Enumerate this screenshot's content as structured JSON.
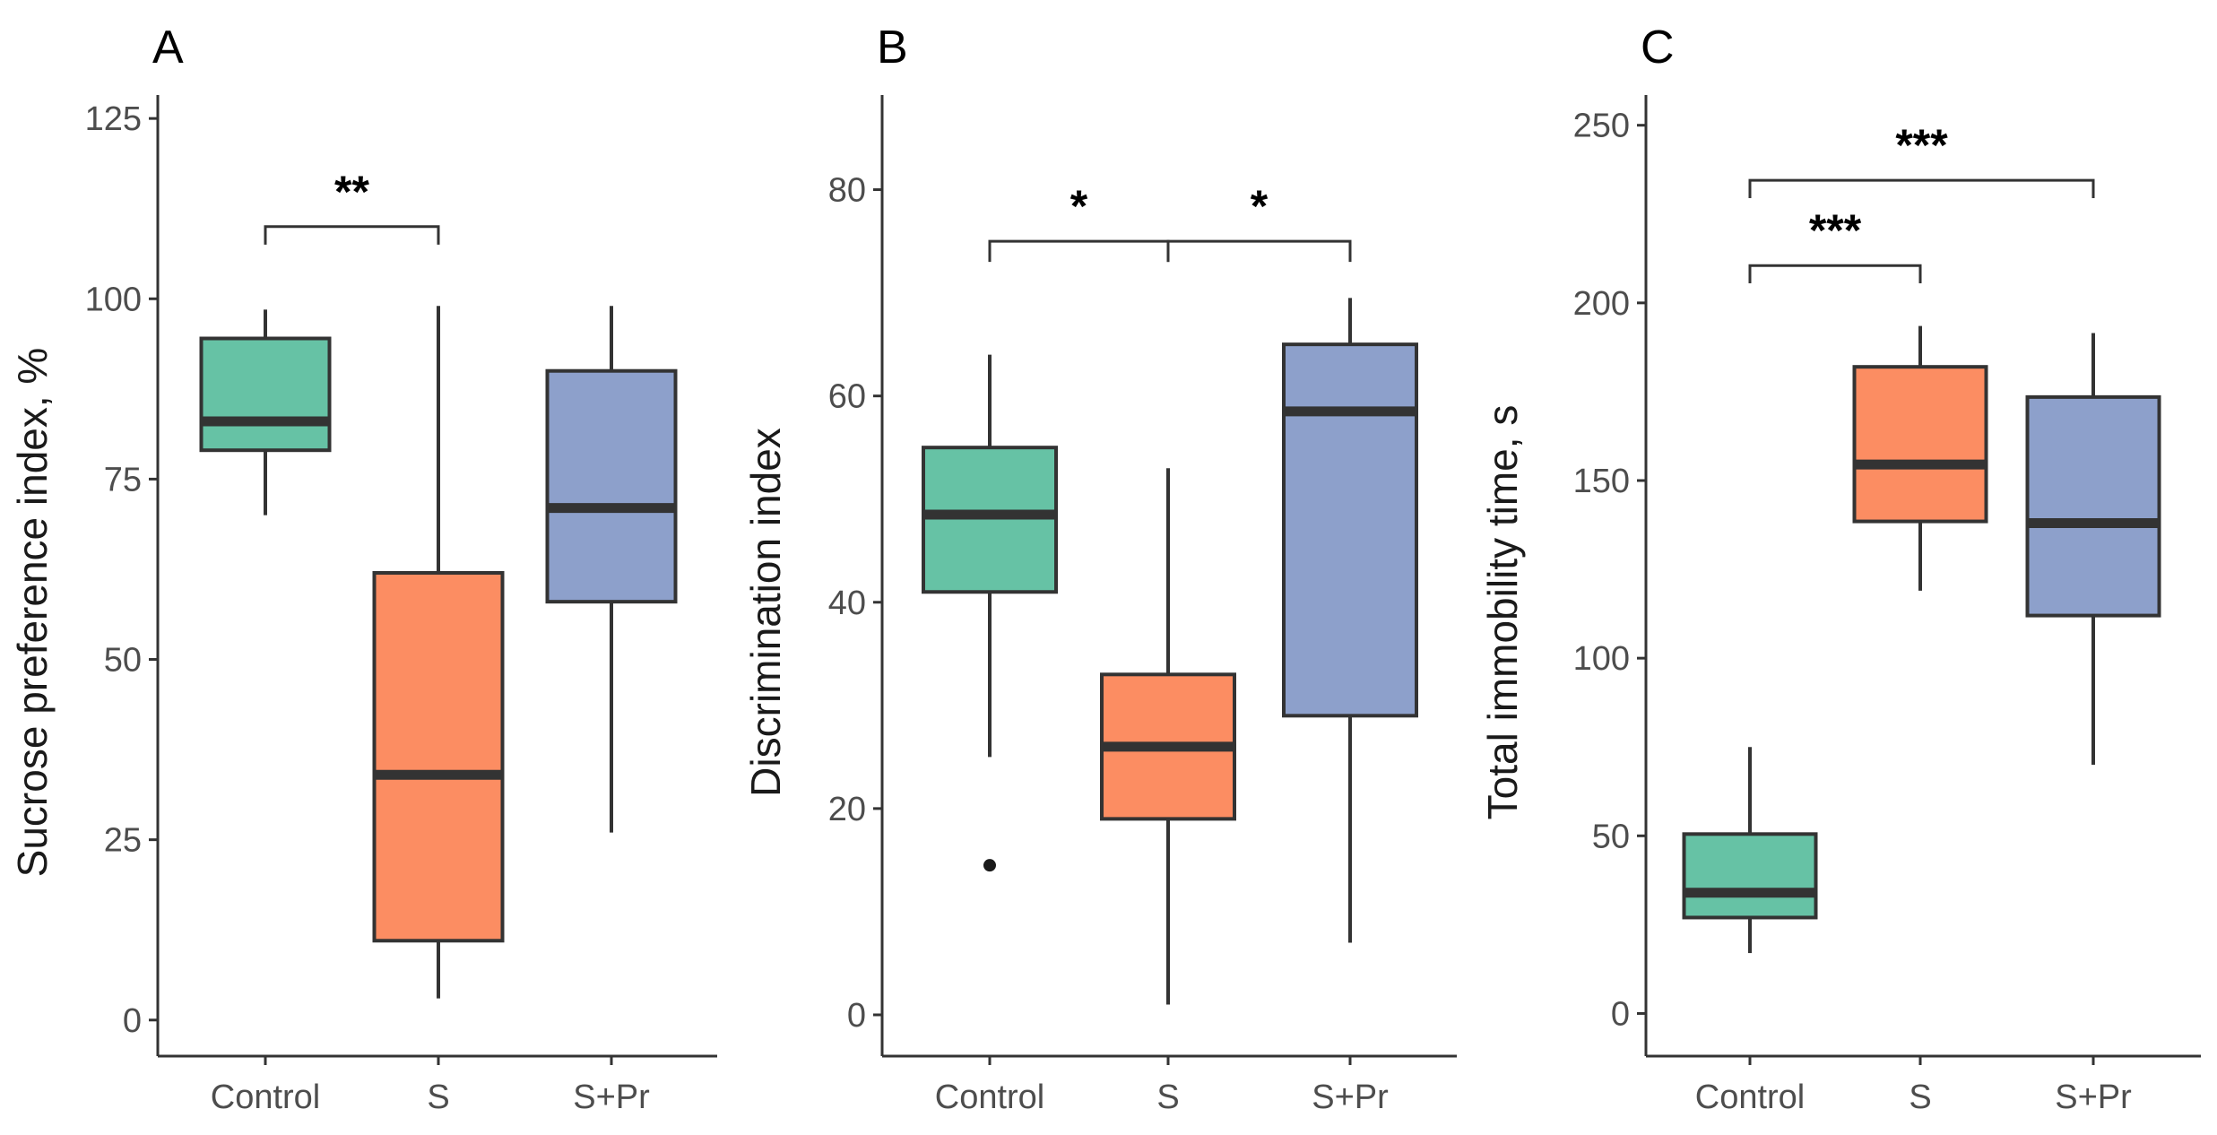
{
  "colors": {
    "Control": "#66c2a5",
    "S": "#fc8d62",
    "S+Pr": "#8da0cb",
    "outline": "#333333",
    "axis": "#333333",
    "tick_text": "#4d4d4d"
  },
  "chart_data": [
    {
      "type": "boxplot",
      "panel": "A",
      "title": "",
      "xlabel": "",
      "ylabel": "Sucrose preference index, %",
      "ylim": [
        -5,
        128
      ],
      "yticks": [
        0,
        25,
        50,
        75,
        100,
        125
      ],
      "ytick_labels": [
        "0",
        "25",
        "50",
        "75",
        "100",
        "125"
      ],
      "categories": [
        "Control",
        "S",
        "S+Pr"
      ],
      "boxes": [
        {
          "group": "Control",
          "whisker_low": 70,
          "q1": 79,
          "median": 83,
          "q3": 94.5,
          "whisker_high": 98.5,
          "outliers": []
        },
        {
          "group": "S",
          "whisker_low": 3,
          "q1": 11,
          "median": 34,
          "q3": 62,
          "whisker_high": 99,
          "outliers": []
        },
        {
          "group": "S+Pr",
          "whisker_low": 26,
          "q1": 58,
          "median": 71,
          "q3": 90,
          "whisker_high": 99,
          "outliers": []
        }
      ],
      "significance": [
        {
          "from": "Control",
          "to": "S",
          "label": "**",
          "y": 110,
          "tip": 2.5
        }
      ]
    },
    {
      "type": "boxplot",
      "panel": "B",
      "title": "",
      "xlabel": "",
      "ylabel": "Discrimination index",
      "ylim": [
        -4,
        89
      ],
      "yticks": [
        0,
        20,
        40,
        60,
        80
      ],
      "ytick_labels": [
        "0",
        "20",
        "40",
        "60",
        "80"
      ],
      "categories": [
        "Control",
        "S",
        "S+Pr"
      ],
      "boxes": [
        {
          "group": "Control",
          "whisker_low": 25,
          "q1": 41,
          "median": 48.5,
          "q3": 55,
          "whisker_high": 64,
          "outliers": [
            14.5
          ]
        },
        {
          "group": "S",
          "whisker_low": 1,
          "q1": 19,
          "median": 26,
          "q3": 33,
          "whisker_high": 53,
          "outliers": []
        },
        {
          "group": "S+Pr",
          "whisker_low": 7,
          "q1": 29,
          "median": 58.5,
          "q3": 65,
          "whisker_high": 69.5,
          "outliers": []
        }
      ],
      "significance": [
        {
          "from": "Control",
          "to": "S",
          "label": "*",
          "y": 75,
          "tip": 2
        },
        {
          "from": "S",
          "to": "S+Pr",
          "label": "*",
          "y": 75,
          "tip": 2
        }
      ]
    },
    {
      "type": "boxplot",
      "panel": "C",
      "title": "",
      "xlabel": "",
      "ylabel": "Total immobility time, s",
      "ylim": [
        -12,
        258
      ],
      "yticks": [
        0,
        50,
        100,
        150,
        200,
        250
      ],
      "ytick_labels": [
        "0",
        "50",
        "100",
        "150",
        "200",
        "250"
      ],
      "categories": [
        "Control",
        "S",
        "S+Pr"
      ],
      "boxes": [
        {
          "group": "Control",
          "whisker_low": 17,
          "q1": 27,
          "median": 34,
          "q3": 50.5,
          "whisker_high": 75,
          "outliers": []
        },
        {
          "group": "S",
          "whisker_low": 119,
          "q1": 138.5,
          "median": 154.5,
          "q3": 182,
          "whisker_high": 193.5,
          "outliers": []
        },
        {
          "group": "S+Pr",
          "whisker_low": 70,
          "q1": 112,
          "median": 138,
          "q3": 173.5,
          "whisker_high": 191.5,
          "outliers": []
        }
      ],
      "significance": [
        {
          "from": "Control",
          "to": "S",
          "label": "***",
          "y": 210.5,
          "tip": 5
        },
        {
          "from": "Control",
          "to": "S+Pr",
          "label": "***",
          "y": 234.5,
          "tip": 5
        }
      ]
    }
  ]
}
